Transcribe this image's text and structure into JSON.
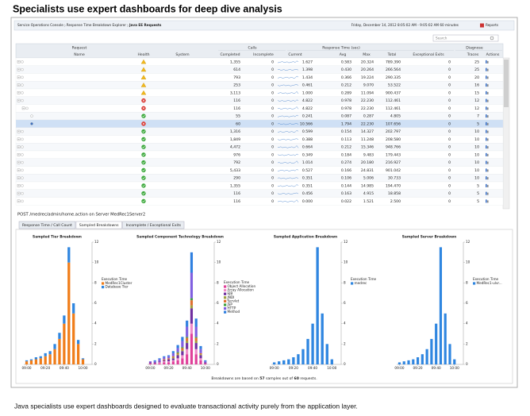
{
  "heading": "Specialists use expert dashboards for deep dive analysis",
  "caption": "Java specialists use expert dashboards designed to evaluate transactional activity purely from the application layer.",
  "console": {
    "breadcrumb": [
      "Service Operations Console",
      "Response Time Breakdown Explorer",
      "Java EE Requests"
    ],
    "time_range": "Friday, December 14, 2012 8:05:02 AM - 9:05:02 AM 60 minutes",
    "reports": "Reports",
    "search": "Search"
  },
  "table": {
    "group_headers": [
      "Request",
      "Calls",
      "Response Time (sec)",
      "Diagnose"
    ],
    "columns": [
      "Name",
      "Health",
      "System",
      "Completed",
      "Incomplete",
      "Current",
      "Avg",
      "Max",
      "Total",
      "Exceptional Exits",
      "Traces",
      "Actions"
    ],
    "health": [
      "warning",
      "warning",
      "warning",
      "warning",
      "warning",
      "error",
      "error",
      "ok",
      "error",
      "ok",
      "ok",
      "ok",
      "ok",
      "ok",
      "ok",
      "ok",
      "ok",
      "ok",
      "ok"
    ],
    "level": [
      0,
      0,
      0,
      0,
      0,
      0,
      1,
      2,
      2,
      0,
      0,
      0,
      0,
      0,
      0,
      0,
      0,
      0,
      0
    ],
    "selected": 8,
    "rows": [
      [
        "POST /physician-web/physician/createRecord.action",
        "MedRec1 [alvsrv143] (Web...",
        "1,355",
        "0",
        "1.627",
        "0.583",
        "20.324",
        "789.390",
        "0",
        "25"
      ],
      [
        "POST /medrec/patient/viewRecordDetail.action",
        "MedRec1 [alvsrv143] (Web...",
        "614",
        "0",
        "1.398",
        "0.430",
        "20.264",
        "266.564",
        "0",
        "25"
      ],
      [
        "POST /medrec/patient/viewLoginResult.action",
        "MedRec1 [alvsrv143] (Web...",
        "793",
        "0",
        "1.434",
        "0.366",
        "19.224",
        "290.335",
        "0",
        "20"
      ],
      [
        "POST /medrec/admin/viewNewlyRegisteredPatients.action",
        "MedRec1 [alvsrv143] (Web...",
        "253",
        "0",
        "0.461",
        "0.212",
        "9.070",
        "53.522",
        "0",
        "16"
      ],
      [
        "POST /physician-web/physician/viewPatients.action",
        "MedRec1 [alvsrv143] (Web...",
        "3,113",
        "0",
        "1.000",
        "0.289",
        "11.094",
        "900.437",
        "0",
        "15"
      ],
      [
        "POST /medrec/admin/home.action",
        "MedRec1 [alvsrv143] (Web...",
        "116",
        "0",
        "4.822",
        "0.978",
        "22.230",
        "112.461",
        "0",
        "12"
      ],
      [
        "POST /medrec/admin/home.action",
        "MedRec1Cluster (WebLogic...",
        "116",
        "0",
        "4.822",
        "0.978",
        "22.230",
        "112.461",
        "0",
        "12"
      ],
      [
        "POST /medrec/admin/home.action",
        "MedRec1Server1 (WebLogi...",
        "55",
        "0",
        "0.241",
        "0.087",
        "0.287",
        "4.805",
        "0",
        "7"
      ],
      [
        "POST /medrec/admin/home.action",
        "MedRec1Server2 (WebLogi...",
        "60",
        "0",
        "10.566",
        "1.794",
        "22.230",
        "107.656",
        "0",
        "5"
      ],
      [
        "POST /physician-web/login.action",
        "MedRec1 [alvsrv143] (Web...",
        "1,316",
        "0",
        "0.599",
        "0.154",
        "14.327",
        "202.797",
        "0",
        "10"
      ],
      [
        "POST /medrec/login.action",
        "MedRec1 [alvsrv143] (Web...",
        "1,849",
        "0",
        "0.388",
        "0.113",
        "11.248",
        "208.580",
        "0",
        "10"
      ],
      [
        "POST /medrec/patient/viewRecordSummary.action",
        "MedRec1 [alvsrv143] (Web...",
        "4,472",
        "0",
        "0.664",
        "0.212",
        "15.346",
        "948.766",
        "0",
        "10"
      ],
      [
        "POST /physician-web/physician/viewRecordDetail.action",
        "MedRec1 [alvsrv143] (Web...",
        "976",
        "0",
        "0.349",
        "0.184",
        "9.483",
        "179.443",
        "0",
        "10"
      ],
      [
        "POST /medrec/loginPatient.action",
        "MedRec1 [alvsrv143] (Web...",
        "792",
        "0",
        "1.014",
        "0.274",
        "20.180",
        "216.927",
        "0",
        "10"
      ],
      [
        "POST /medrec-jaxrpc-services/JaxRpcRecordCreationFac",
        "MedRec1 [alvsrv143] (Web...",
        "5,433",
        "0",
        "0.527",
        "0.166",
        "24.831",
        "901.042",
        "0",
        "10"
      ],
      [
        "POST /physician-web/physician/viewPatient.action",
        "MedRec1 [alvsrv143] (Web...",
        "290",
        "0",
        "0.351",
        "0.106",
        "5.006",
        "30.733",
        "0",
        "10"
      ],
      [
        "POST /physician-web/physician/viewRecordCreationResu",
        "MedRec1 [alvsrv143] (Web...",
        "1,355",
        "0",
        "0.351",
        "0.144",
        "14.985",
        "194.470",
        "0",
        "5"
      ],
      [
        "POST /medrec/loginAdmin.action",
        "MedRec1 [alvsrv143] (Web...",
        "116",
        "0",
        "0.456",
        "0.163",
        "4.915",
        "18.858",
        "0",
        "5"
      ],
      [
        "GET /medrec/loginAdmin.action",
        "MedRec1 [alvsrv143] (Web...",
        "116",
        "0",
        "0.000",
        "0.022",
        "1.521",
        "2.500",
        "0",
        "5"
      ]
    ]
  },
  "detail_title": "POST /medrec/admin/home.action on Server MedRec1Server2",
  "tabs": [
    "Response Time / Call Count",
    "Sampled Breakdowns",
    "Incomplete / Exceptional Exits"
  ],
  "active_tab": 1,
  "footnote": {
    "before": "Breakdowns are based on ",
    "samples": "57",
    "middle": " samples out of ",
    "requests": "60",
    "after": " requests."
  },
  "chart_data": [
    {
      "type": "bar",
      "stacked": true,
      "title": "Sampled Tier Breakdown",
      "legend_title": "Execution Time",
      "x": [
        0,
        5,
        10,
        15,
        20,
        25,
        30,
        35,
        40,
        45,
        50,
        55,
        60
      ],
      "xlim": [
        -3,
        68
      ],
      "xticks": [
        {
          "value": 0,
          "label": "09:00"
        },
        {
          "value": 20,
          "label": "09:20"
        },
        {
          "value": 40,
          "label": "09:40"
        },
        {
          "value": 60,
          "label": "10:00"
        }
      ],
      "ylim": [
        0,
        12
      ],
      "yticks": [
        0,
        2,
        4,
        6,
        8,
        10,
        12
      ],
      "series": [
        {
          "name": "MedRec1Cluster",
          "color": "#f07d1a",
          "values": [
            0.3,
            0.4,
            0.5,
            0.6,
            0.8,
            1,
            1.5,
            2.5,
            4,
            10,
            5,
            2,
            0.5
          ]
        },
        {
          "name": "Database Tier",
          "color": "#2f86e0",
          "values": [
            0.1,
            0.1,
            0.2,
            0.2,
            0.3,
            0.3,
            0.5,
            0.6,
            0.8,
            1.5,
            1,
            0.4,
            0.1
          ]
        }
      ]
    },
    {
      "type": "bar",
      "stacked": true,
      "title": "Sampled Component Technology Breakdown",
      "legend_title": "Execution Time",
      "x": [
        0,
        5,
        10,
        15,
        20,
        25,
        30,
        35,
        40,
        45,
        50,
        55,
        60
      ],
      "xlim": [
        -3,
        68
      ],
      "xticks": [
        {
          "value": 0,
          "label": "09:00"
        },
        {
          "value": 20,
          "label": "09:20"
        },
        {
          "value": 40,
          "label": "09:40"
        },
        {
          "value": 60,
          "label": "10:00"
        }
      ],
      "ylim": [
        0,
        12
      ],
      "yticks": [
        0,
        2,
        4,
        6,
        8,
        10,
        12
      ],
      "series": [
        {
          "name": "Object Allocation",
          "color": "#e0409a",
          "values": [
            0.1,
            0.1,
            0.1,
            0.2,
            0.2,
            0.3,
            0.4,
            0.6,
            1,
            3,
            1,
            0.4,
            0.1
          ]
        },
        {
          "name": "Array Allocation",
          "color": "#f08cc8",
          "values": [
            0,
            0,
            0.1,
            0.1,
            0.1,
            0.1,
            0.2,
            0.3,
            0.5,
            1,
            0.5,
            0.2,
            0
          ]
        },
        {
          "name": "EJB",
          "color": "#7030a0",
          "values": [
            0.1,
            0.1,
            0.1,
            0.1,
            0.2,
            0.2,
            0.3,
            0.4,
            0.6,
            1.5,
            0.6,
            0.3,
            0.1
          ]
        },
        {
          "name": "JNDI",
          "color": "#a0a040",
          "values": [
            0,
            0,
            0,
            0,
            0,
            0.1,
            0.1,
            0.1,
            0.2,
            0.3,
            0.2,
            0.1,
            0
          ]
        },
        {
          "name": "Servlet",
          "color": "#e07030",
          "values": [
            0,
            0,
            0,
            0.1,
            0.1,
            0.1,
            0.1,
            0.2,
            0.3,
            0.5,
            0.3,
            0.1,
            0
          ]
        },
        {
          "name": "JSP",
          "color": "#40a040",
          "values": [
            0,
            0,
            0,
            0,
            0,
            0,
            0.1,
            0.1,
            0.1,
            0.2,
            0.1,
            0,
            0
          ]
        },
        {
          "name": "HTTP",
          "color": "#8060e0",
          "values": [
            0.1,
            0.1,
            0.2,
            0.2,
            0.2,
            0.3,
            0.4,
            0.6,
            1,
            2.5,
            1,
            0.4,
            0.1
          ]
        },
        {
          "name": "Method",
          "color": "#3080e0",
          "values": [
            0,
            0.1,
            0.1,
            0.1,
            0.1,
            0.2,
            0.3,
            0.4,
            0.6,
            2,
            0.8,
            0.3,
            0.1
          ]
        }
      ]
    },
    {
      "type": "bar",
      "stacked": true,
      "title": "Sampled Application Breakdown",
      "legend_title": "Execution Time",
      "x": [
        0,
        5,
        10,
        15,
        20,
        25,
        30,
        35,
        40,
        45,
        50,
        55,
        60
      ],
      "xlim": [
        -3,
        68
      ],
      "xticks": [
        {
          "value": 0,
          "label": "09:00"
        },
        {
          "value": 20,
          "label": "09:20"
        },
        {
          "value": 40,
          "label": "09:40"
        },
        {
          "value": 60,
          "label": "10:00"
        }
      ],
      "ylim": [
        0,
        12
      ],
      "yticks": [
        0,
        2,
        4,
        6,
        8,
        10,
        12
      ],
      "series": [
        {
          "name": "medrec",
          "color": "#2f86e0",
          "values": [
            0.2,
            0.3,
            0.4,
            0.5,
            0.7,
            1,
            1.5,
            2.5,
            4,
            11.5,
            5,
            2,
            0.5
          ]
        }
      ]
    },
    {
      "type": "bar",
      "stacked": true,
      "title": "Sampled Server Breakdown",
      "legend_title": "Execution Time",
      "x": [
        0,
        5,
        10,
        15,
        20,
        25,
        30,
        35,
        40,
        45,
        50,
        55,
        60
      ],
      "xlim": [
        -3,
        68
      ],
      "xticks": [
        {
          "value": 0,
          "label": "09:00"
        },
        {
          "value": 20,
          "label": "09:20"
        },
        {
          "value": 40,
          "label": "09:40"
        },
        {
          "value": 60,
          "label": "10:00"
        }
      ],
      "ylim": [
        0,
        12
      ],
      "yticks": [
        0,
        2,
        4,
        6,
        8,
        10,
        12
      ],
      "series": [
        {
          "name": "MedRec1-ulvr...",
          "color": "#2f86e0",
          "values": [
            0.2,
            0.3,
            0.4,
            0.5,
            0.7,
            1,
            1.5,
            2.5,
            4,
            11.5,
            5,
            2,
            0.5
          ]
        }
      ]
    }
  ]
}
